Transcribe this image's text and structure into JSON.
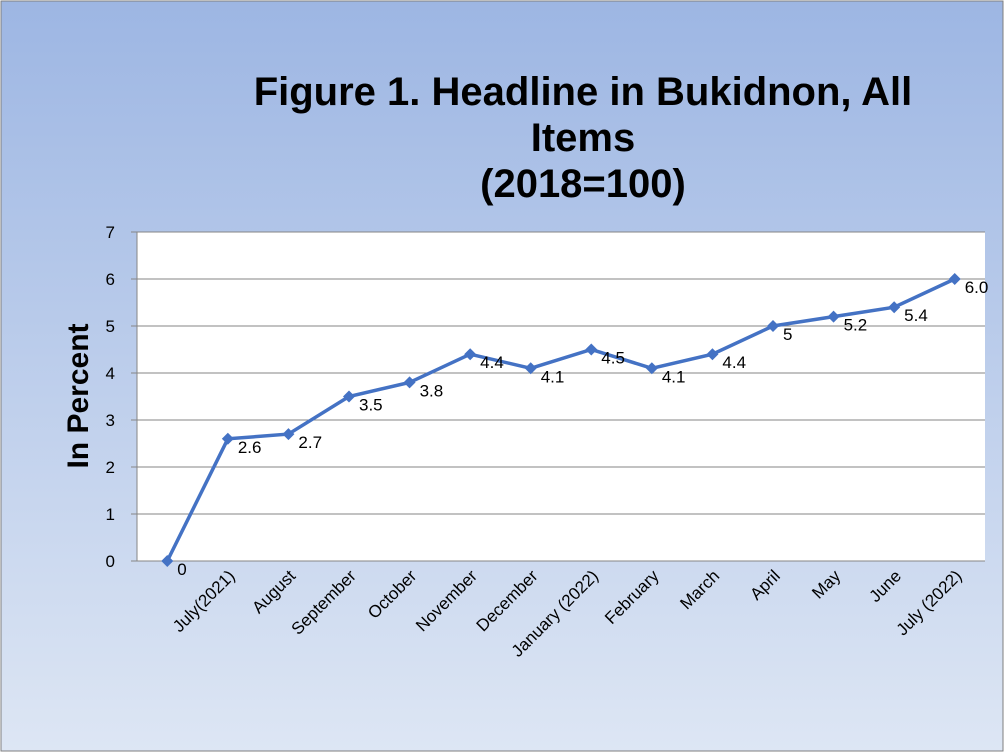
{
  "chart_data": {
    "type": "line",
    "title": [
      "Figure 1. Headline in Bukidnon, All",
      "Items",
      "(2018=100)"
    ],
    "y_label": "In Percent",
    "categories": [
      null,
      "July(2021)",
      "August",
      "September",
      "October",
      "November",
      "December",
      "January (2022)",
      "February",
      "March",
      "April",
      "May",
      "June",
      "July (2022)"
    ],
    "series": [
      {
        "name": "Headline",
        "color": "#4472c4",
        "values": [
          0,
          2.6,
          2.7,
          3.5,
          3.8,
          4.4,
          4.1,
          4.5,
          4.1,
          4.4,
          5,
          5.2,
          5.4,
          6.0
        ],
        "value_labels": [
          "0",
          "2.6",
          "2.7",
          "3.5",
          "3.8",
          "4.4",
          "4.1",
          "4.5",
          "4.1",
          "4.4",
          "5",
          "5.2",
          "5.4",
          "6.0"
        ]
      }
    ],
    "ylim": [
      0,
      7
    ],
    "yticks": [
      0,
      1,
      2,
      3,
      4,
      5,
      6,
      7
    ],
    "grid": true
  }
}
